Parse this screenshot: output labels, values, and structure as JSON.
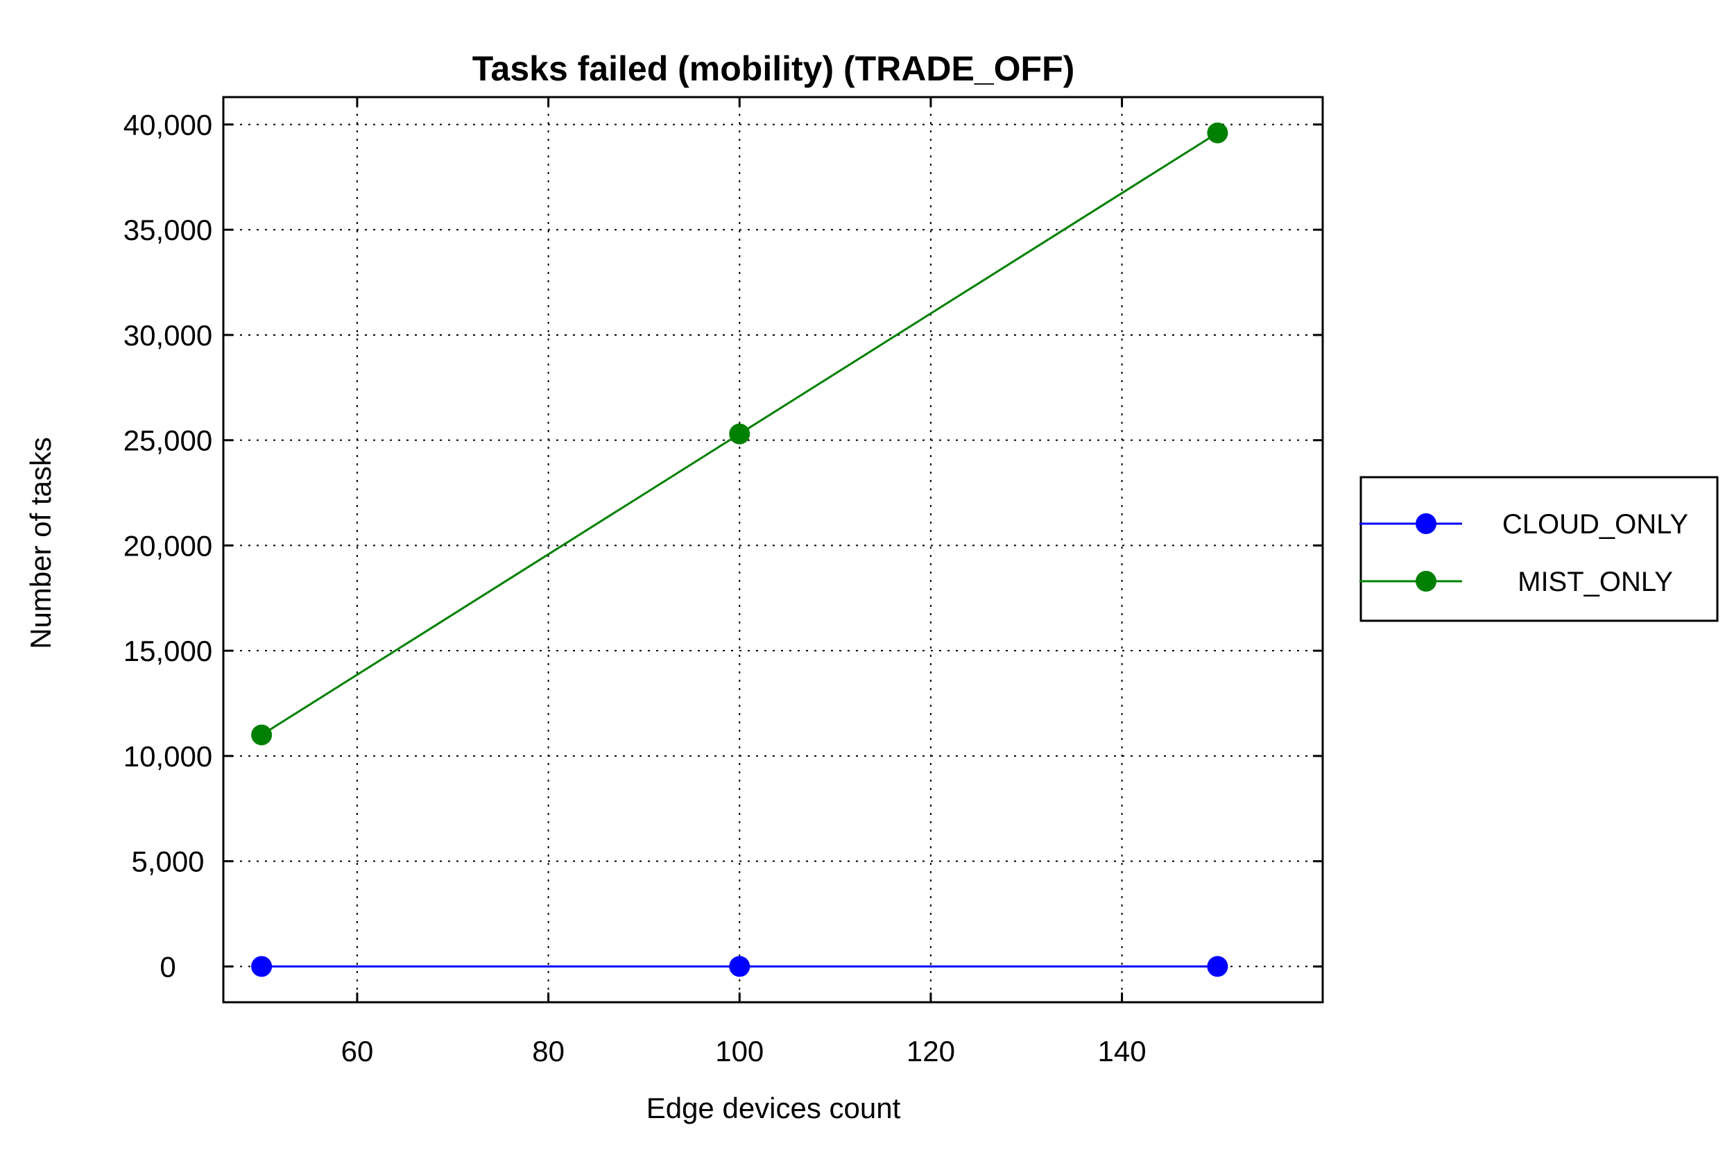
{
  "chart_data": {
    "type": "line",
    "title": "Tasks failed (mobility) (TRADE_OFF)",
    "xlabel": "Edge devices count",
    "ylabel": "Number of tasks",
    "x": [
      50,
      100,
      150
    ],
    "xlim": [
      46,
      161
    ],
    "ylim": [
      -1700,
      41300
    ],
    "xticks": [
      60,
      80,
      100,
      120,
      140
    ],
    "xtick_labels": [
      "60",
      "80",
      "100",
      "120",
      "140"
    ],
    "yticks": [
      0,
      5000,
      10000,
      15000,
      20000,
      25000,
      30000,
      35000,
      40000
    ],
    "ytick_labels": [
      "0",
      "5,000",
      "10,000",
      "15,000",
      "20,000",
      "25,000",
      "30,000",
      "35,000",
      "40,000"
    ],
    "grid": true,
    "legend_position": "right",
    "series": [
      {
        "name": "CLOUD_ONLY",
        "color": "#0000ff",
        "values": [
          0,
          0,
          0
        ]
      },
      {
        "name": "MIST_ONLY",
        "color": "#008000",
        "values": [
          11000,
          25300,
          39600
        ]
      }
    ]
  }
}
